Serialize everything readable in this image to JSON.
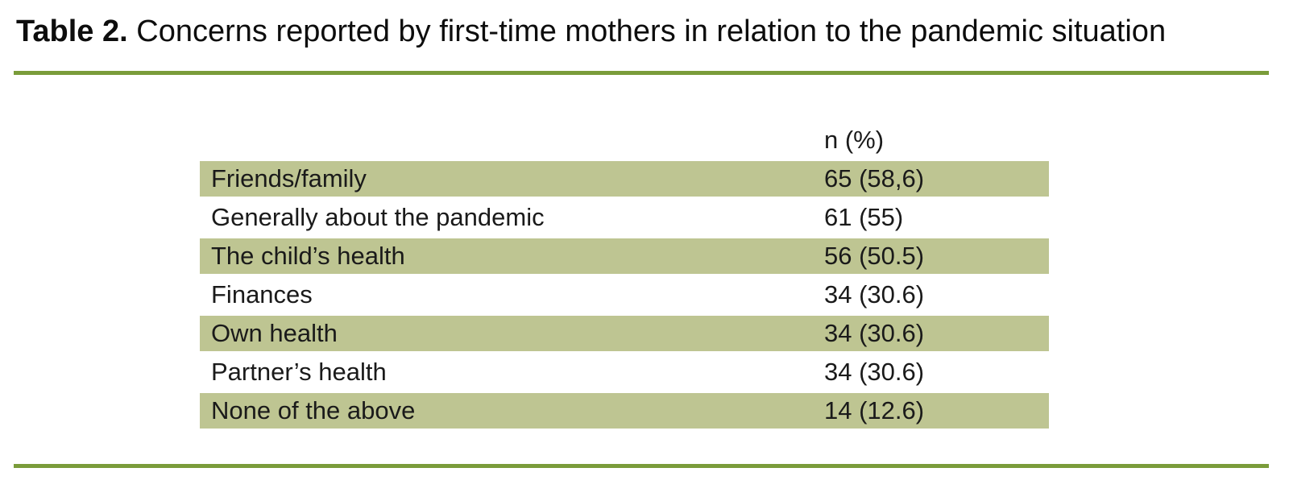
{
  "title": {
    "prefix": "Table 2.",
    "text": "Concerns reported by first-time mothers in relation to the pandemic situation"
  },
  "table": {
    "value_header": "n (%)",
    "rows": [
      {
        "concern": "Friends/family",
        "value": "65 (58,6)"
      },
      {
        "concern": "Generally about the pandemic",
        "value": "61 (55)"
      },
      {
        "concern": "The child’s health",
        "value": "56 (50.5)"
      },
      {
        "concern": "Finances",
        "value": "34 (30.6)"
      },
      {
        "concern": "Own health",
        "value": "34 (30.6)"
      },
      {
        "concern": "Partner’s health",
        "value": "34 (30.6)"
      },
      {
        "concern": "None of the above",
        "value": "14 (12.6)"
      }
    ]
  },
  "colors": {
    "row_shade": "#bec592",
    "rule_green": "#7a9c3a",
    "text": "#1a1a1a"
  }
}
